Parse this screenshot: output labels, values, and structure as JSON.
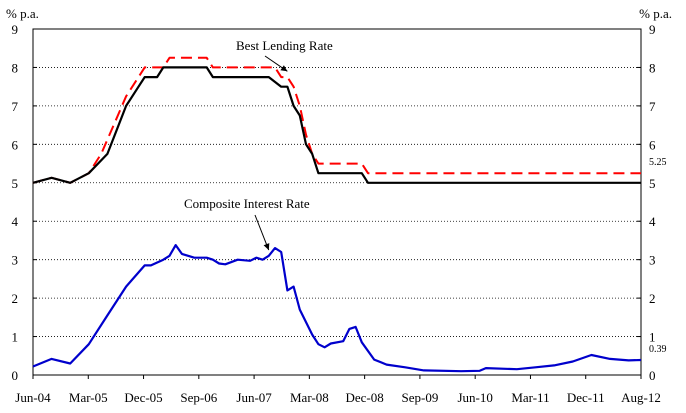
{
  "chart_data": {
    "type": "line",
    "left_axis_unit": "% p.a.",
    "right_axis_unit": "% p.a.",
    "ylim": [
      0,
      9
    ],
    "y_ticks": [
      "0",
      "1",
      "2",
      "3",
      "4",
      "5",
      "6",
      "7",
      "8",
      "9"
    ],
    "x_ticks": [
      "Jun-04",
      "Mar-05",
      "Dec-05",
      "Sep-06",
      "Jun-07",
      "Mar-08",
      "Dec-08",
      "Sep-09",
      "Jun-10",
      "Mar-11",
      "Dec-11",
      "Aug-12"
    ],
    "x_range": [
      "2004-06",
      "2012-08"
    ],
    "grid": "horizontal dotted",
    "series": [
      {
        "key": "best_lending_upper",
        "color": "#ff0000",
        "dash": true,
        "points": [
          [
            "2004-06",
            5.0
          ],
          [
            "2004-09",
            5.13
          ],
          [
            "2004-12",
            5.0
          ],
          [
            "2005-03",
            5.25
          ],
          [
            "2005-05",
            5.75
          ],
          [
            "2005-07",
            6.5
          ],
          [
            "2005-09",
            7.25
          ],
          [
            "2005-11",
            7.75
          ],
          [
            "2005-12",
            8.0
          ],
          [
            "2006-03",
            8.0
          ],
          [
            "2006-04",
            8.25
          ],
          [
            "2006-10",
            8.25
          ],
          [
            "2006-11",
            8.0
          ],
          [
            "2007-09",
            8.0
          ],
          [
            "2007-10",
            7.75
          ],
          [
            "2007-11",
            7.75
          ],
          [
            "2007-12",
            7.5
          ],
          [
            "2008-01",
            7.0
          ],
          [
            "2008-02",
            6.25
          ],
          [
            "2008-03",
            5.75
          ],
          [
            "2008-04",
            5.5
          ],
          [
            "2008-11",
            5.5
          ],
          [
            "2008-12",
            5.25
          ],
          [
            "2012-08",
            5.25
          ]
        ]
      },
      {
        "key": "best_lending_lower",
        "color": "#000000",
        "dash": false,
        "points": [
          [
            "2004-06",
            5.0
          ],
          [
            "2004-09",
            5.13
          ],
          [
            "2004-12",
            5.0
          ],
          [
            "2005-03",
            5.25
          ],
          [
            "2005-06",
            5.75
          ],
          [
            "2005-09",
            7.0
          ],
          [
            "2005-11",
            7.5
          ],
          [
            "2005-12",
            7.75
          ],
          [
            "2006-02",
            7.75
          ],
          [
            "2006-03",
            8.0
          ],
          [
            "2006-10",
            8.0
          ],
          [
            "2006-11",
            7.75
          ],
          [
            "2007-08",
            7.75
          ],
          [
            "2007-10",
            7.5
          ],
          [
            "2007-11",
            7.5
          ],
          [
            "2007-12",
            7.0
          ],
          [
            "2008-01",
            6.75
          ],
          [
            "2008-02",
            6.0
          ],
          [
            "2008-03",
            5.75
          ],
          [
            "2008-04",
            5.25
          ],
          [
            "2008-11",
            5.25
          ],
          [
            "2008-12",
            5.0
          ],
          [
            "2012-08",
            5.0
          ]
        ]
      },
      {
        "key": "composite",
        "color": "#0000cc",
        "dash": false,
        "points": [
          [
            "2004-06",
            0.22
          ],
          [
            "2004-09",
            0.42
          ],
          [
            "2004-12",
            0.3
          ],
          [
            "2005-03",
            0.8
          ],
          [
            "2005-06",
            1.55
          ],
          [
            "2005-09",
            2.3
          ],
          [
            "2005-12",
            2.85
          ],
          [
            "2006-01",
            2.85
          ],
          [
            "2006-03",
            3.0
          ],
          [
            "2006-04",
            3.1
          ],
          [
            "2006-05",
            3.38
          ],
          [
            "2006-06",
            3.15
          ],
          [
            "2006-08",
            3.05
          ],
          [
            "2006-10",
            3.05
          ],
          [
            "2006-11",
            3.0
          ],
          [
            "2006-12",
            2.9
          ],
          [
            "2007-01",
            2.88
          ],
          [
            "2007-03",
            3.0
          ],
          [
            "2007-05",
            2.97
          ],
          [
            "2007-06",
            3.05
          ],
          [
            "2007-07",
            3.0
          ],
          [
            "2007-08",
            3.1
          ],
          [
            "2007-09",
            3.3
          ],
          [
            "2007-10",
            3.2
          ],
          [
            "2007-11",
            2.2
          ],
          [
            "2007-12",
            2.3
          ],
          [
            "2008-01",
            1.7
          ],
          [
            "2008-03",
            1.05
          ],
          [
            "2008-04",
            0.8
          ],
          [
            "2008-05",
            0.72
          ],
          [
            "2008-06",
            0.82
          ],
          [
            "2008-08",
            0.88
          ],
          [
            "2008-09",
            1.2
          ],
          [
            "2008-10",
            1.25
          ],
          [
            "2008-11",
            0.85
          ],
          [
            "2009-01",
            0.4
          ],
          [
            "2009-03",
            0.27
          ],
          [
            "2009-06",
            0.2
          ],
          [
            "2009-09",
            0.12
          ],
          [
            "2010-03",
            0.1
          ],
          [
            "2010-06",
            0.11
          ],
          [
            "2010-07",
            0.18
          ],
          [
            "2010-12",
            0.15
          ],
          [
            "2011-03",
            0.2
          ],
          [
            "2011-06",
            0.25
          ],
          [
            "2011-09",
            0.35
          ],
          [
            "2011-12",
            0.52
          ],
          [
            "2012-03",
            0.42
          ],
          [
            "2012-06",
            0.38
          ],
          [
            "2012-08",
            0.39
          ]
        ]
      }
    ],
    "annotations": [
      {
        "key": "best_lending",
        "text": "Best Lending Rate",
        "arrow_to": [
          "2007-11",
          7.9
        ]
      },
      {
        "key": "composite",
        "text": "Composite Interest Rate",
        "arrow_to": [
          "2007-08",
          3.25
        ]
      }
    ],
    "end_labels": [
      {
        "text": "5.25",
        "y": 5.25
      },
      {
        "text": "0.39",
        "y": 0.39
      }
    ]
  }
}
